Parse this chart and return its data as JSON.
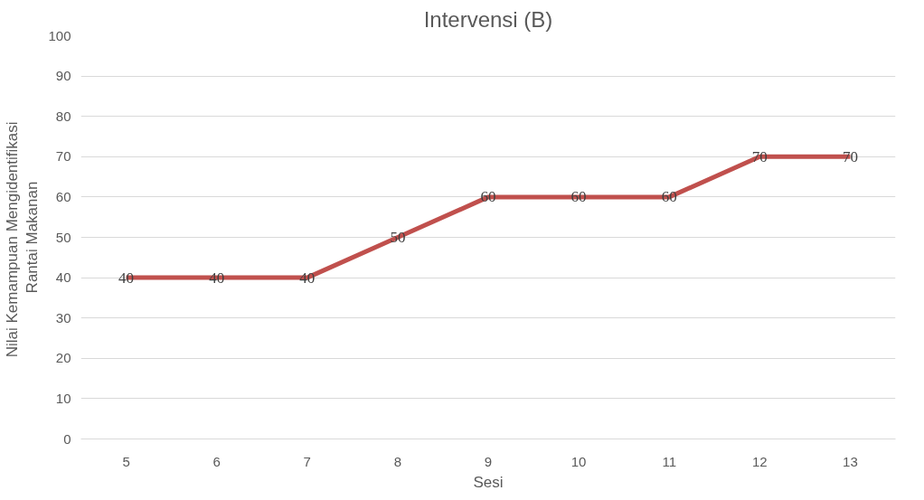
{
  "chart_data": {
    "type": "line",
    "title": "Intervensi (B)",
    "xlabel": "Sesi",
    "ylabel": "Nilai  Kemampuan Mengidentifikasi\nRantai Makanan",
    "categories": [
      "5",
      "6",
      "7",
      "8",
      "9",
      "10",
      "11",
      "12",
      "13"
    ],
    "series": [
      {
        "color": "#c0504d",
        "values": [
          40,
          40,
          40,
          50,
          60,
          60,
          60,
          70,
          70
        ]
      }
    ],
    "ylim": [
      0,
      100
    ],
    "yticks": [
      0,
      10,
      20,
      30,
      40,
      50,
      60,
      70,
      80,
      90,
      100
    ],
    "grid": "y",
    "data_labels": true,
    "marker": "none",
    "line_style": "solid"
  }
}
